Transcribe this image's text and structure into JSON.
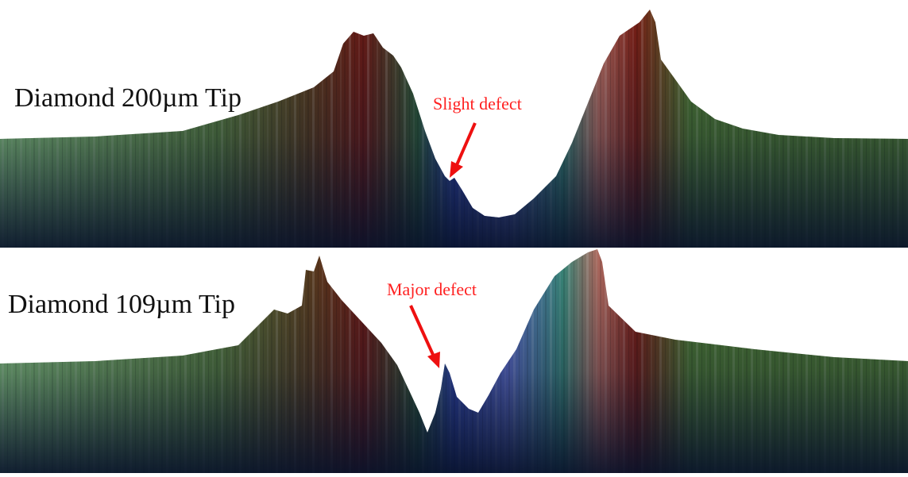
{
  "panels": [
    {
      "label": "Diamond 200µm Tip",
      "annotation": "Slight defect"
    },
    {
      "label": "Diamond 109µm Tip",
      "annotation": "Major defect"
    }
  ],
  "colors": {
    "annotation": "#ff2020",
    "arrow": "#ee1010",
    "surface_green": "#4e7a32",
    "surface_red": "#7a1e14",
    "surface_blue": "#3346a8",
    "surface_dark": "#0b1530"
  }
}
